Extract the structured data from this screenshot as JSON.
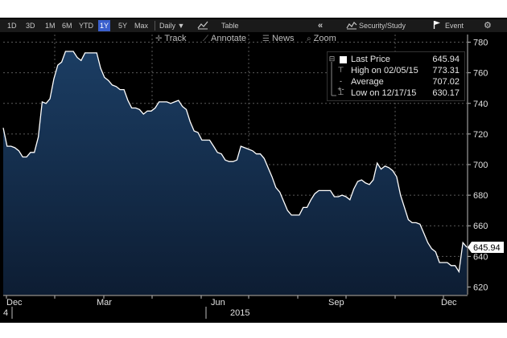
{
  "toolbar": {
    "ranges": [
      "1D",
      "3D",
      "1M",
      "6M",
      "YTD",
      "1Y",
      "5Y",
      "Max"
    ],
    "active_range": "1Y",
    "frequency": "Daily ▼",
    "table_label": "Table",
    "security_study_label": "Security/Study",
    "event_label": "Event"
  },
  "toolbar2": {
    "track_label": "Track",
    "annotate_label": "Annotate",
    "news_label": "News",
    "zoom_label": "Zoom"
  },
  "legend": {
    "last_price_label": "Last Price",
    "last_price_value": "645.94",
    "high_label": "High on 02/05/15",
    "high_value": "773.31",
    "average_label": "Average",
    "average_value": "707.02",
    "low_label": "Low on 12/17/15",
    "low_value": "630.17"
  },
  "colors": {
    "background": "#000000",
    "area_fill_top": "#1b3d63",
    "area_fill_bottom": "#0d1d33",
    "line": "#ffffff",
    "grid": "#5a5a5a",
    "accent": "#3a5fcd"
  },
  "chart_data": {
    "type": "area",
    "ylim": [
      615,
      785
    ],
    "y_ticks": [
      620,
      640,
      660,
      680,
      700,
      720,
      740,
      760,
      780
    ],
    "x_tick_labels": [
      "Dec",
      "Mar",
      "Jun",
      "Sep",
      "Dec"
    ],
    "x_sub_labels": [
      "4",
      "2015"
    ],
    "last_price_tag": "645.94",
    "grid": true,
    "legend_position": "top-right",
    "series": [
      {
        "values": [
          724,
          712,
          712,
          711,
          709,
          705,
          705,
          708,
          708,
          718,
          741,
          740,
          743,
          756,
          765,
          767,
          774,
          774,
          774,
          770,
          768,
          773,
          773,
          773,
          773,
          763,
          757,
          755,
          752,
          751,
          749,
          749,
          742,
          737,
          737,
          736,
          733,
          735,
          735,
          737,
          741,
          741,
          741,
          740,
          741,
          742,
          738,
          736,
          728,
          722,
          721,
          716,
          716,
          716,
          712,
          708,
          707,
          703,
          702,
          702,
          703,
          712,
          711,
          710,
          709,
          707,
          707,
          704,
          698,
          692,
          685,
          682,
          676,
          670,
          667,
          667,
          667,
          672,
          672,
          677,
          681,
          683,
          683,
          683,
          683,
          679,
          679,
          680,
          679,
          677,
          684,
          689,
          690,
          688,
          687,
          690,
          701,
          697,
          699,
          698,
          696,
          692,
          680,
          672,
          664,
          662,
          662,
          661,
          655,
          649,
          645,
          643,
          636,
          636,
          636,
          634,
          634,
          630,
          649,
          646
        ]
      }
    ]
  }
}
